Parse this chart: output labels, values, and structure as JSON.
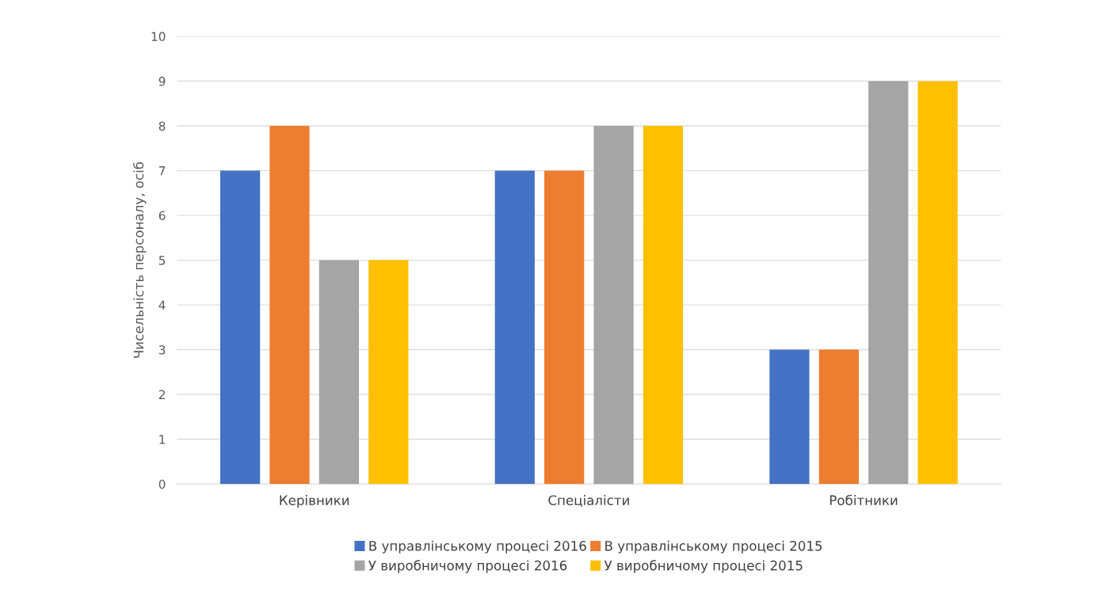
{
  "chart_data": {
    "type": "bar",
    "ylabel": "Чисельність персоналу, осіб",
    "categories": [
      "Керівники",
      "Спеціалісти",
      "Робітники"
    ],
    "series": [
      {
        "name": "В управлінському процесі 2016",
        "color": "#4472c4",
        "values": [
          7,
          7,
          3
        ]
      },
      {
        "name": "В управлінському процесі 2015",
        "color": "#ed7d31",
        "values": [
          8,
          7,
          3
        ]
      },
      {
        "name": "У виробничому процесі 2016",
        "color": "#a5a5a5",
        "values": [
          5,
          8,
          9
        ]
      },
      {
        "name": "У виробничому процесі 2015",
        "color": "#ffc000",
        "values": [
          5,
          8,
          9
        ]
      }
    ],
    "ylim": [
      0,
      10
    ],
    "yticks": [
      0,
      1,
      2,
      3,
      4,
      5,
      6,
      7,
      8,
      9,
      10
    ],
    "grid": "y",
    "legend": "bottom"
  }
}
